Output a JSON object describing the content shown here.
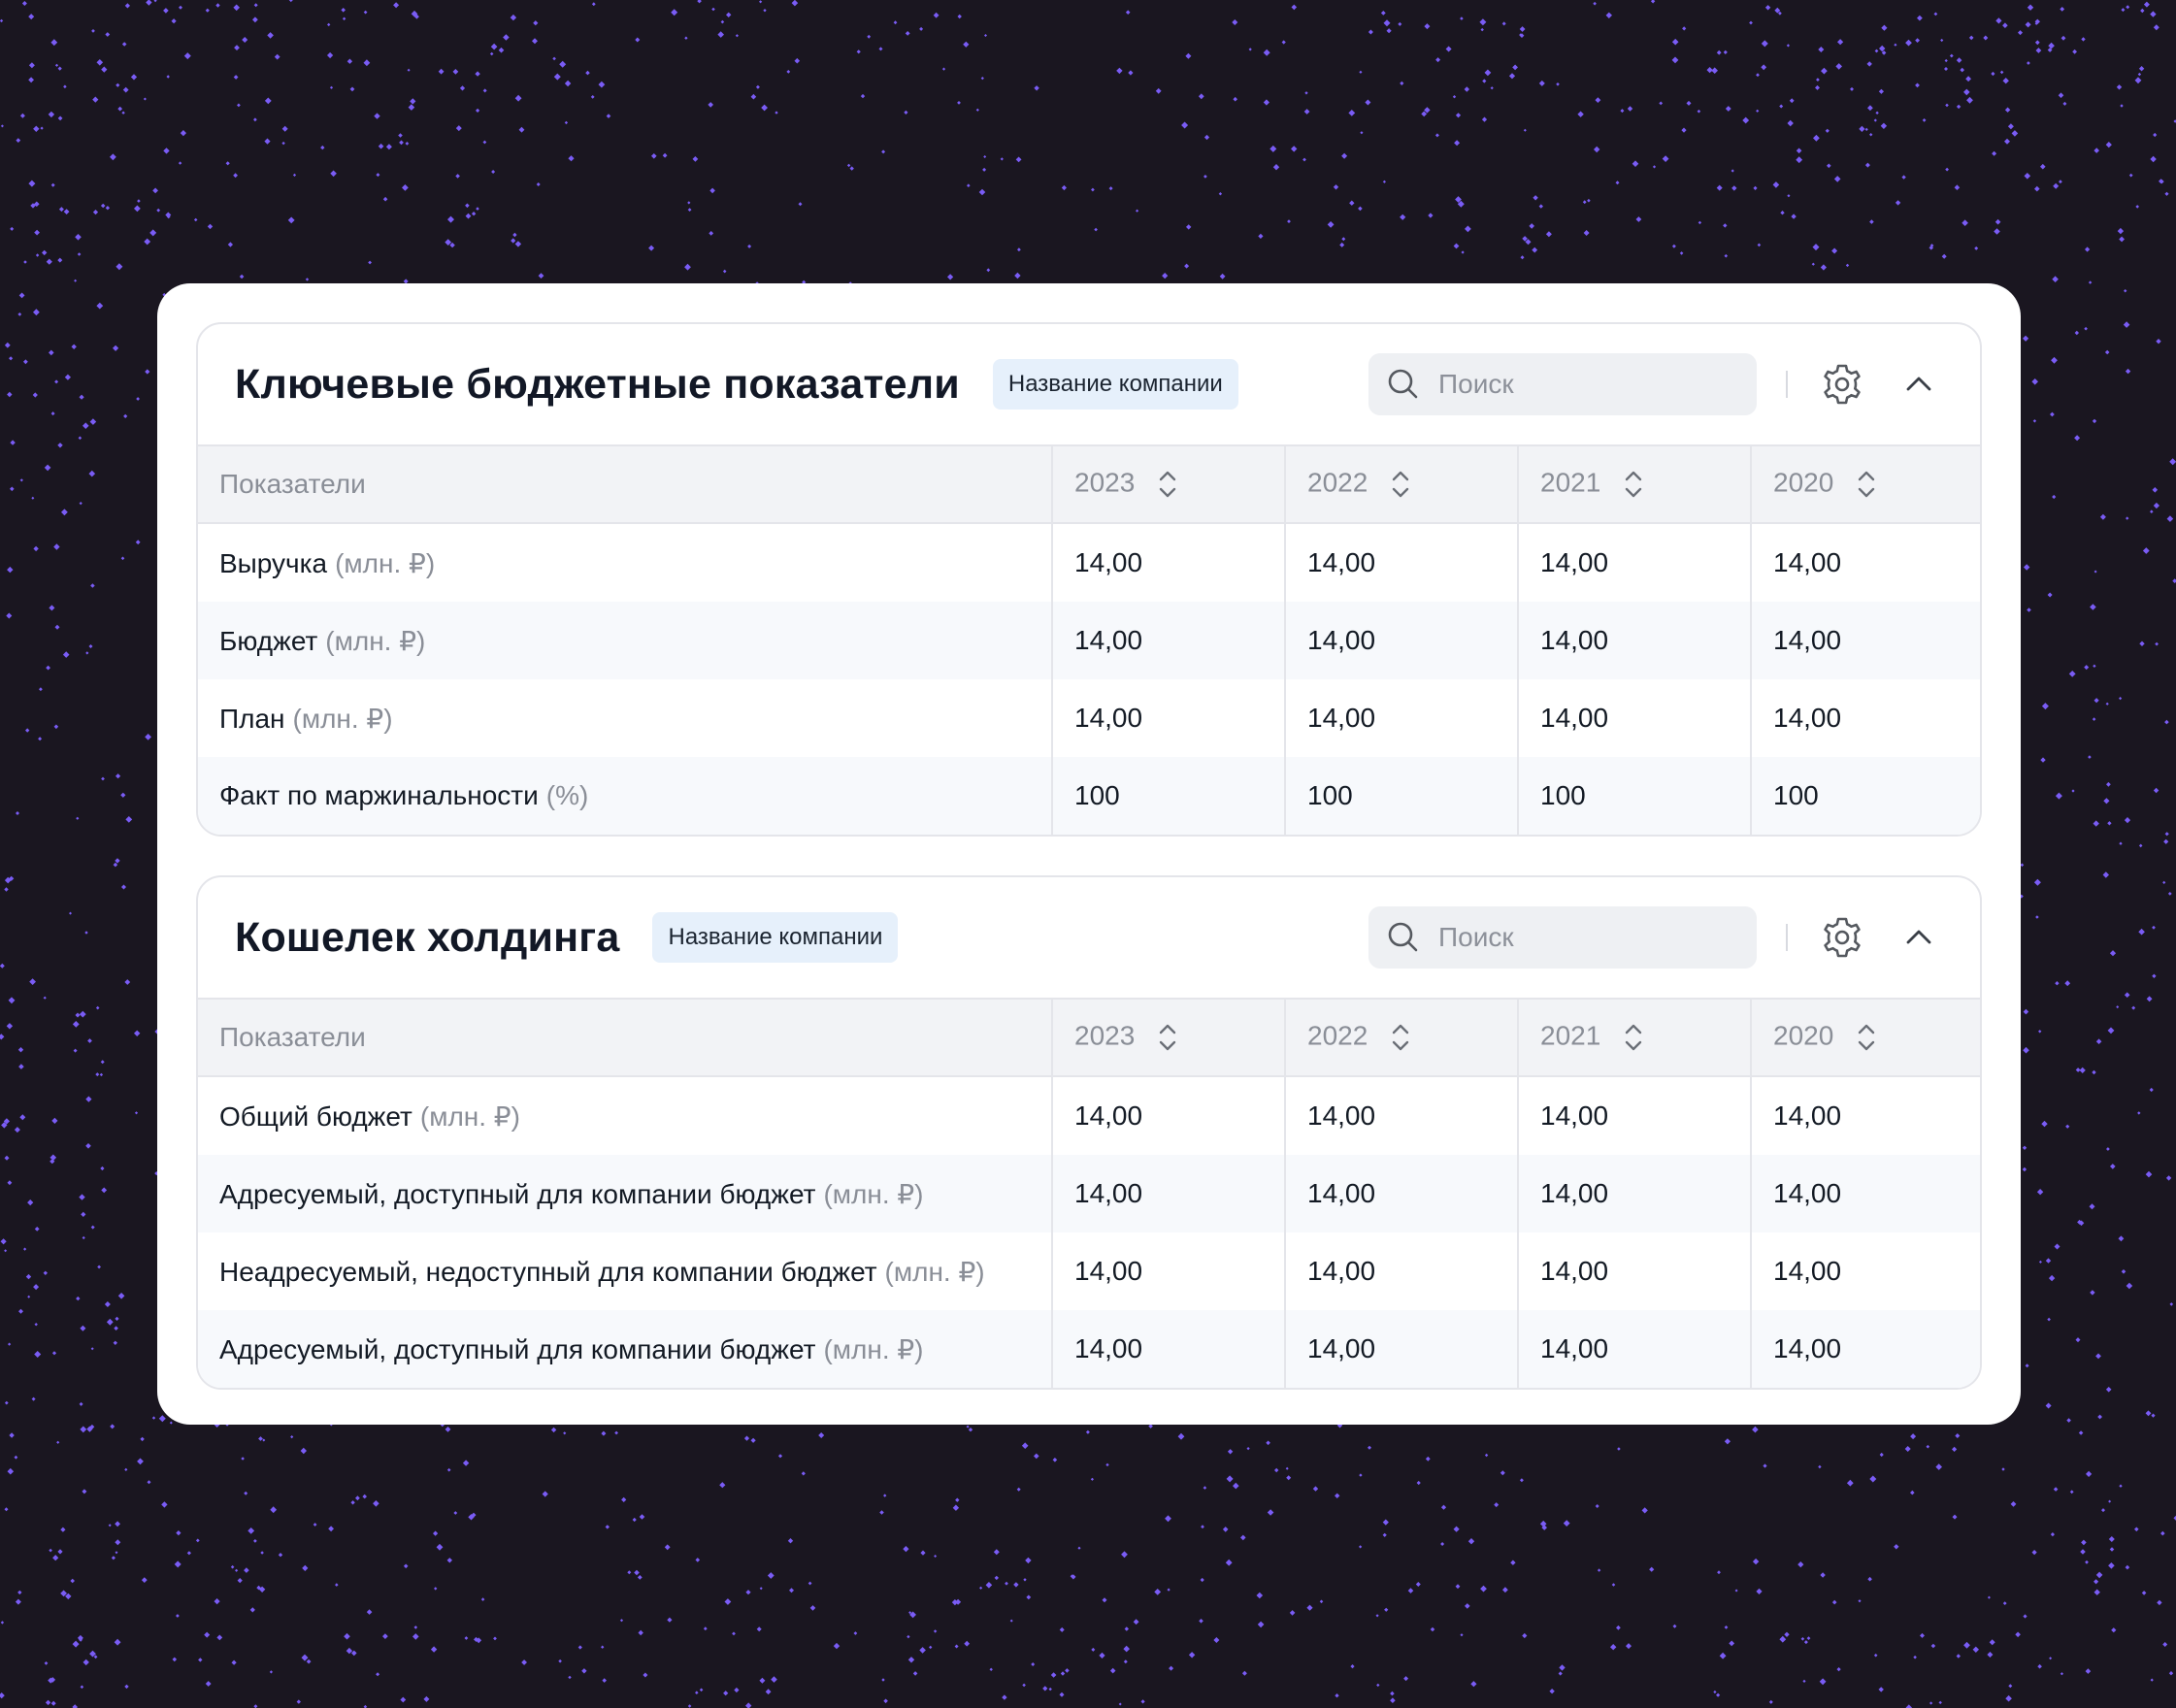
{
  "colors": {
    "background": "#1a1620",
    "dots": "#7a5cf5",
    "badge_bg": "#e6f0fb"
  },
  "sections": [
    {
      "title": "Ключевые бюджетные показатели",
      "badge": "Название компании",
      "search_placeholder": "Поиск",
      "header": {
        "label": "Показатели",
        "years": [
          "2023",
          "2022",
          "2021",
          "2020"
        ]
      },
      "rows": [
        {
          "name": "Выручка",
          "unit": "(млн. ₽)",
          "values": [
            "14,00",
            "14,00",
            "14,00",
            "14,00"
          ]
        },
        {
          "name": "Бюджет",
          "unit": "(млн. ₽)",
          "values": [
            "14,00",
            "14,00",
            "14,00",
            "14,00"
          ]
        },
        {
          "name": "План",
          "unit": "(млн. ₽)",
          "values": [
            "14,00",
            "14,00",
            "14,00",
            "14,00"
          ]
        },
        {
          "name": "Факт по маржинальности",
          "unit": "(%)",
          "values": [
            "100",
            "100",
            "100",
            "100"
          ]
        }
      ]
    },
    {
      "title": "Кошелек холдинга",
      "badge": "Название компании",
      "search_placeholder": "Поиск",
      "header": {
        "label": "Показатели",
        "years": [
          "2023",
          "2022",
          "2021",
          "2020"
        ]
      },
      "rows": [
        {
          "name": "Общий бюджет",
          "unit": "(млн. ₽)",
          "values": [
            "14,00",
            "14,00",
            "14,00",
            "14,00"
          ]
        },
        {
          "name": "Адресуемый, доступный для компании бюджет",
          "unit": "(млн. ₽)",
          "values": [
            "14,00",
            "14,00",
            "14,00",
            "14,00"
          ]
        },
        {
          "name": "Неадресуемый, недоступный для компании бюджет",
          "unit": "(млн. ₽)",
          "values": [
            "14,00",
            "14,00",
            "14,00",
            "14,00"
          ]
        },
        {
          "name": "Адресуемый, доступный для компании бюджет",
          "unit": "(млн. ₽)",
          "values": [
            "14,00",
            "14,00",
            "14,00",
            "14,00"
          ]
        }
      ]
    }
  ]
}
